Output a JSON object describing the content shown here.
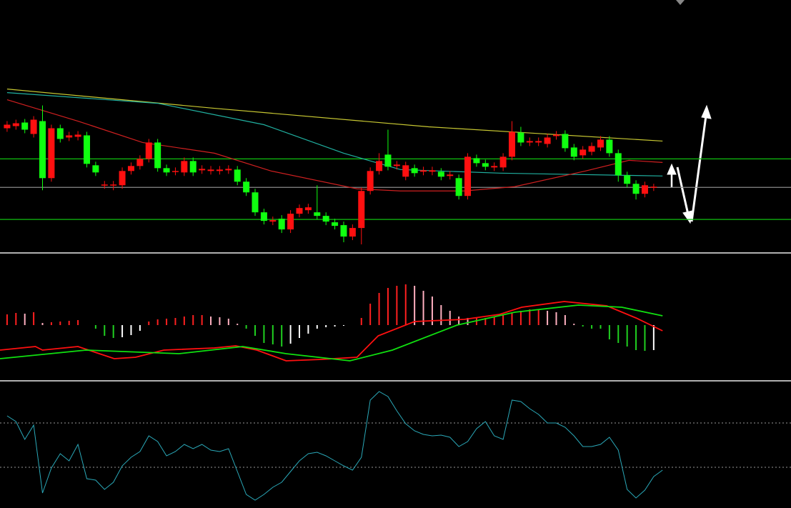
{
  "chart_data": [
    {
      "type": "candlestick",
      "xlim": [
        -0.8,
        88.5
      ],
      "ylim": [
        0,
        355
      ],
      "up_color": "#ff1010",
      "down_color": "#10ff10",
      "open": [
        175,
        178,
        183,
        167,
        185,
        105,
        175,
        162,
        163,
        165,
        123,
        95,
        95,
        95,
        115,
        122,
        132,
        155,
        119,
        114,
        113,
        129,
        116,
        115,
        115,
        116,
        117,
        100,
        85,
        57,
        44,
        48,
        33,
        55,
        60,
        57,
        52,
        43,
        39,
        23,
        35,
        87,
        115,
        138,
        122,
        107,
        119,
        114,
        114,
        114,
        108,
        105,
        80,
        133,
        126,
        120,
        120,
        135,
        169,
        155,
        155,
        153,
        164,
        167,
        148,
        137,
        142,
        148,
        159,
        140,
        109,
        97,
        83,
        92
      ],
      "high": [
        185,
        187,
        188,
        192,
        207,
        180,
        180,
        170,
        171,
        170,
        128,
        101,
        101,
        120,
        127,
        137,
        160,
        160,
        124,
        120,
        134,
        134,
        123,
        122,
        122,
        123,
        122,
        105,
        90,
        62,
        51,
        53,
        60,
        68,
        69,
        95,
        57,
        48,
        44,
        40,
        92,
        120,
        140,
        173,
        129,
        128,
        124,
        121,
        121,
        119,
        115,
        110,
        140,
        138,
        131,
        127,
        140,
        185,
        177,
        162,
        162,
        167,
        171,
        172,
        153,
        150,
        155,
        164,
        164,
        145,
        114,
        102,
        100,
        97
      ],
      "low": [
        170,
        173,
        168,
        162,
        88,
        100,
        155,
        157,
        158,
        120,
        108,
        90,
        88,
        90,
        110,
        117,
        127,
        114,
        108,
        109,
        108,
        108,
        111,
        110,
        110,
        111,
        95,
        80,
        52,
        40,
        39,
        28,
        28,
        50,
        55,
        47,
        39,
        33,
        15,
        18,
        12,
        82,
        110,
        116,
        117,
        102,
        107,
        109,
        109,
        102,
        103,
        75,
        75,
        121,
        116,
        115,
        115,
        130,
        150,
        150,
        150,
        148,
        159,
        142,
        130,
        132,
        137,
        143,
        135,
        100,
        92,
        75,
        78,
        87
      ],
      "close": [
        180,
        182,
        173,
        187,
        105,
        175,
        160,
        165,
        166,
        125,
        113,
        96,
        96,
        115,
        122,
        132,
        155,
        119,
        113,
        115,
        129,
        113,
        118,
        117,
        117,
        118,
        100,
        85,
        57,
        45,
        46,
        33,
        55,
        63,
        64,
        52,
        44,
        38,
        23,
        35,
        87,
        115,
        129,
        121,
        124,
        123,
        112,
        116,
        116,
        107,
        110,
        80,
        135,
        126,
        121,
        122,
        135,
        170,
        155,
        157,
        157,
        162,
        166,
        147,
        135,
        145,
        150,
        159,
        140,
        109,
        97,
        83,
        95,
        93
      ],
      "lines": [
        {
          "color": "#c8c832",
          "x": [
            0,
            23.4,
            47.6,
            74
          ],
          "values": [
            230,
            203,
            177,
            157
          ]
        },
        {
          "color": "#20b0a0",
          "x": [
            0,
            17,
            29,
            38,
            44.4,
            55.6,
            74
          ],
          "values": [
            225,
            210,
            180,
            140,
            117,
            112,
            108
          ]
        },
        {
          "color": "#d02020",
          "x": [
            0,
            8,
            15.3,
            23.4,
            29.8,
            39.5,
            44.4,
            51.6,
            57.3,
            65.3,
            70.2,
            74
          ],
          "values": [
            215,
            185,
            155,
            140,
            115,
            90,
            87,
            87,
            93,
            115,
            130,
            127
          ]
        }
      ],
      "levels": [
        {
          "value": 132,
          "color": "#10c010"
        },
        {
          "value": 92,
          "color": "#888888"
        },
        {
          "value": 47,
          "color": "#10c010"
        }
      ]
    },
    {
      "type": "macd",
      "xlim": [
        -0.8,
        88.5
      ],
      "ylim": [
        -78,
        100
      ],
      "histogram": [
        15,
        17,
        16,
        18,
        3,
        4,
        5,
        6,
        7,
        0,
        -5,
        -15,
        -18,
        -17,
        -14,
        -8,
        5,
        8,
        9,
        10,
        12,
        14,
        14,
        12,
        11,
        9,
        2,
        -5,
        -15,
        -25,
        -27,
        -30,
        -26,
        -18,
        -12,
        -5,
        -3,
        -2,
        -1,
        0,
        10,
        30,
        45,
        52,
        55,
        57,
        55,
        48,
        40,
        28,
        20,
        12,
        10,
        10,
        10,
        12,
        14,
        18,
        20,
        22,
        22,
        20,
        18,
        14,
        2,
        -2,
        -5,
        -5,
        -20,
        -25,
        -30,
        -35,
        -36,
        -35
      ],
      "rise_color": "#ff2020",
      "fall_color": "#ffb0c0",
      "neg_fall_color": "#20d020",
      "neg_rise_color": "#ffffff",
      "lines": [
        {
          "color": "#ff1010",
          "x": [
            -0.8,
            3.2,
            4,
            8,
            12.1,
            14.5,
            17.7,
            23.4,
            25.8,
            28.2,
            31.5,
            35.5,
            39.5,
            41.9,
            46,
            51.6,
            55.6,
            58.1,
            62.9,
            67.7,
            71,
            74
          ],
          "values": [
            -35,
            -30,
            -35,
            -30,
            -47,
            -45,
            -35,
            -32,
            -29,
            -35,
            -50,
            -48,
            -45,
            -15,
            5,
            8,
            15,
            25,
            33,
            27,
            10,
            -8
          ]
        },
        {
          "color": "#10e010",
          "x": [
            -0.8,
            8.9,
            19.4,
            26.6,
            31.5,
            38.7,
            43.5,
            50.8,
            57.3,
            64.5,
            69.4,
            74
          ],
          "values": [
            -47,
            -35,
            -40,
            -30,
            -40,
            -50,
            -35,
            0,
            18,
            28,
            25,
            13
          ]
        }
      ]
    },
    {
      "type": "line",
      "xlim": [
        -0.8,
        88.5
      ],
      "ylim": [
        0,
        176
      ],
      "color": "#2aa8b8",
      "values": [
        129,
        121,
        96,
        116,
        21,
        56,
        76,
        66,
        89,
        41,
        39,
        26,
        36,
        59,
        71,
        79,
        101,
        93,
        73,
        79,
        89,
        83,
        89,
        81,
        79,
        83,
        51,
        19,
        11,
        19,
        29,
        36,
        51,
        66,
        76,
        78,
        73,
        66,
        59,
        53,
        71,
        151,
        163,
        156,
        136,
        118,
        108,
        103,
        101,
        102,
        99,
        86,
        93,
        111,
        121,
        101,
        96,
        151,
        149,
        139,
        131,
        119,
        119,
        113,
        101,
        86,
        86,
        89,
        99,
        81,
        26,
        14,
        25,
        44,
        53
      ],
      "levels": [
        119,
        57
      ],
      "level_color": "#999999",
      "dashed": true
    }
  ]
}
